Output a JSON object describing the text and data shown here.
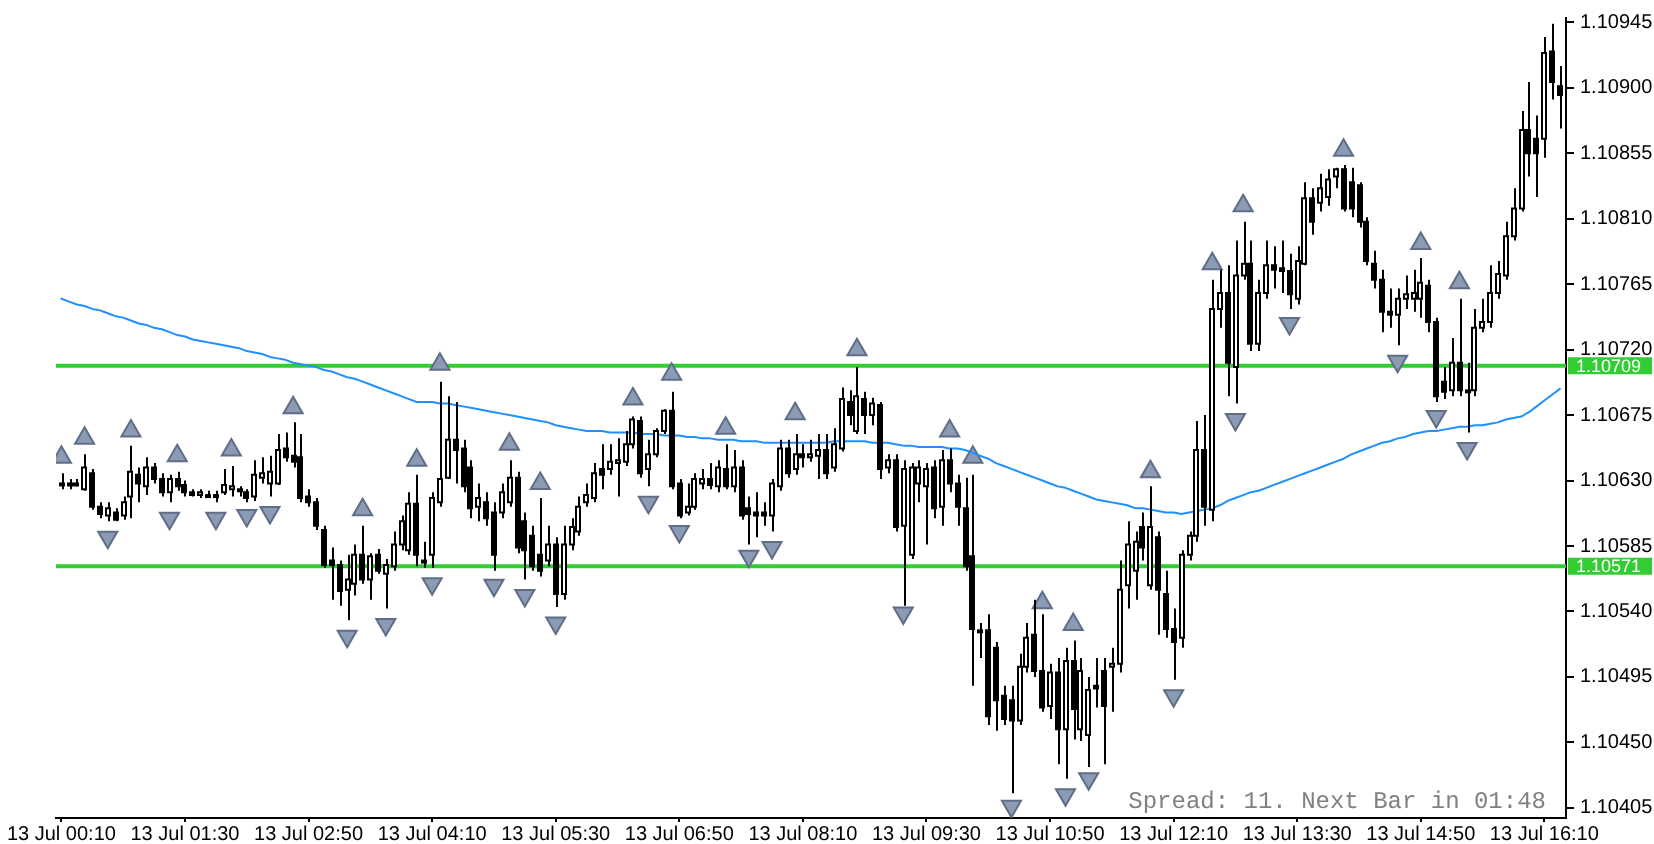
{
  "chart_data": {
    "type": "candlestick",
    "categories": [
      "13 Jul 00:10",
      null,
      null,
      null,
      null,
      null,
      null,
      null,
      null,
      null,
      null,
      null,
      null,
      null,
      null,
      null,
      "13 Jul 01:30",
      null,
      null,
      null,
      null,
      null,
      null,
      null,
      null,
      null,
      null,
      null,
      null,
      null,
      null,
      null,
      "13 Jul 02:50",
      null,
      null,
      null,
      null,
      null,
      null,
      null,
      null,
      null,
      null,
      null,
      null,
      null,
      null,
      null,
      "13 Jul 04:10",
      null,
      null,
      null,
      null,
      null,
      null,
      null,
      null,
      null,
      null,
      null,
      null,
      null,
      null,
      null,
      "13 Jul 05:30",
      null,
      null,
      null,
      null,
      null,
      null,
      null,
      null,
      null,
      null,
      null,
      null,
      null,
      null,
      null,
      "13 Jul 06:50",
      null,
      null,
      null,
      null,
      null,
      null,
      null,
      null,
      null,
      null,
      null,
      null,
      null,
      null,
      null,
      "13 Jul 08:10",
      null,
      null,
      null,
      null,
      null,
      null,
      null,
      null,
      null,
      null,
      null,
      null,
      null,
      null,
      null,
      "13 Jul 09:30",
      null,
      null,
      null,
      null,
      null,
      null,
      null,
      null,
      null,
      null,
      null,
      null,
      null,
      null,
      null,
      "13 Jul 10:50",
      null,
      null,
      null,
      null,
      null,
      null,
      null,
      null,
      null,
      null,
      null,
      null,
      null,
      null,
      null,
      "13 Jul 12:10",
      null,
      null,
      null,
      null,
      null,
      null,
      null,
      null,
      null,
      null,
      null,
      null,
      null,
      null,
      null,
      "13 Jul 13:30",
      null,
      null,
      null,
      null,
      null,
      null,
      null,
      null,
      null,
      null,
      null,
      null,
      null,
      null,
      null,
      "13 Jul 14:50",
      null,
      null,
      null,
      null,
      null,
      null,
      null,
      null,
      null,
      null,
      null,
      null,
      null,
      null,
      null,
      "13 Jul 16:10",
      null,
      null
    ],
    "ohlc": [
      [
        1.10628,
        1.10635,
        1.10624,
        1.10627
      ],
      [
        1.10627,
        1.10631,
        1.10624,
        1.10628
      ],
      [
        1.10628,
        1.10631,
        1.10626,
        1.10627
      ],
      [
        1.10624,
        1.10648,
        1.10623,
        1.10639
      ],
      [
        1.10635,
        1.10638,
        1.1061,
        1.10612
      ],
      [
        1.10612,
        1.10615,
        1.10604,
        1.10607
      ],
      [
        1.10606,
        1.10615,
        1.10602,
        1.10611
      ],
      [
        1.10608,
        1.10611,
        1.10602,
        1.10603
      ],
      [
        1.10606,
        1.10619,
        1.10603,
        1.10615
      ],
      [
        1.10619,
        1.10654,
        1.10604,
        1.10636
      ],
      [
        1.10634,
        1.10639,
        1.10615,
        1.10628
      ],
      [
        1.10626,
        1.10646,
        1.1062,
        1.10639
      ],
      [
        1.10639,
        1.10642,
        1.10628,
        1.10631
      ],
      [
        1.10631,
        1.10635,
        1.10619,
        1.10622
      ],
      [
        1.10622,
        1.10634,
        1.10615,
        1.10631
      ],
      [
        1.10631,
        1.10636,
        1.10623,
        1.10626
      ],
      [
        1.10627,
        1.1063,
        1.10619,
        1.10622
      ],
      [
        1.10622,
        1.10624,
        1.10619,
        1.1062
      ],
      [
        1.1062,
        1.10624,
        1.10618,
        1.10622
      ],
      [
        1.1062,
        1.10623,
        1.10618,
        1.10619
      ],
      [
        1.10619,
        1.10623,
        1.10615,
        1.1062
      ],
      [
        1.10622,
        1.10638,
        1.1062,
        1.10627
      ],
      [
        1.10624,
        1.1064,
        1.10619,
        1.10626
      ],
      [
        1.10623,
        1.10626,
        1.10619,
        1.10624
      ],
      [
        1.10622,
        1.10624,
        1.10615,
        1.10618
      ],
      [
        1.10619,
        1.10644,
        1.10616,
        1.10634
      ],
      [
        1.10632,
        1.10646,
        1.10628,
        1.10635
      ],
      [
        1.10628,
        1.10647,
        1.10619,
        1.10636
      ],
      [
        1.10628,
        1.10662,
        1.10627,
        1.10651
      ],
      [
        1.10652,
        1.10663,
        1.10643,
        1.10646
      ],
      [
        1.10647,
        1.1067,
        1.10639,
        1.10643
      ],
      [
        1.10646,
        1.10662,
        1.10615,
        1.10618
      ],
      [
        1.10619,
        1.10624,
        1.10612,
        1.10615
      ],
      [
        1.10615,
        1.10618,
        1.10596,
        1.10599
      ],
      [
        1.10596,
        1.10599,
        1.1057,
        1.10572
      ],
      [
        1.10575,
        1.10584,
        1.10548,
        1.10572
      ],
      [
        1.10572,
        1.10575,
        1.10544,
        1.10554
      ],
      [
        1.10555,
        1.10579,
        1.10534,
        1.10562
      ],
      [
        1.10559,
        1.10586,
        1.10551,
        1.10579
      ],
      [
        1.10579,
        1.10599,
        1.10559,
        1.10562
      ],
      [
        1.10562,
        1.1058,
        1.10548,
        1.10578
      ],
      [
        1.10579,
        1.10583,
        1.10566,
        1.10568
      ],
      [
        1.10566,
        1.10576,
        1.10542,
        1.10572
      ],
      [
        1.10571,
        1.10595,
        1.10568,
        1.10586
      ],
      [
        1.10586,
        1.10606,
        1.10582,
        1.10602
      ],
      [
        1.10582,
        1.10622,
        1.10579,
        1.10614
      ],
      [
        1.10614,
        1.10634,
        1.10571,
        1.10579
      ],
      [
        1.10575,
        1.10588,
        1.1057,
        1.10574
      ],
      [
        1.10579,
        1.10622,
        1.1057,
        1.10618
      ],
      [
        1.10615,
        1.10698,
        1.10612,
        1.10631
      ],
      [
        1.10632,
        1.10688,
        1.10631,
        1.10658
      ],
      [
        1.10658,
        1.10684,
        1.10628,
        1.10651
      ],
      [
        1.10652,
        1.10658,
        1.10622,
        1.10626
      ],
      [
        1.10639,
        1.10644,
        1.10604,
        1.10611
      ],
      [
        1.10612,
        1.10628,
        1.10602,
        1.10618
      ],
      [
        1.10615,
        1.10622,
        1.10599,
        1.10604
      ],
      [
        1.10608,
        1.10615,
        1.10568,
        1.10579
      ],
      [
        1.10608,
        1.10628,
        1.10604,
        1.10622
      ],
      [
        1.10615,
        1.10644,
        1.10612,
        1.10632
      ],
      [
        1.10632,
        1.10636,
        1.1058,
        1.10584
      ],
      [
        1.10602,
        1.10608,
        1.10562,
        1.10582
      ],
      [
        1.10592,
        1.10599,
        1.10568,
        1.10571
      ],
      [
        1.10579,
        1.10618,
        1.10564,
        1.10568
      ],
      [
        1.10575,
        1.10599,
        1.10571,
        1.10586
      ],
      [
        1.10586,
        1.10591,
        1.10543,
        1.10552
      ],
      [
        1.10552,
        1.10599,
        1.10548,
        1.10586
      ],
      [
        1.10586,
        1.10604,
        1.10582,
        1.10598
      ],
      [
        1.10595,
        1.10619,
        1.10592,
        1.10612
      ],
      [
        1.10615,
        1.10628,
        1.10612,
        1.1062
      ],
      [
        1.10618,
        1.10642,
        1.10615,
        1.10635
      ],
      [
        1.10638,
        1.10655,
        1.10624,
        1.10634
      ],
      [
        1.10638,
        1.10655,
        1.10634,
        1.10643
      ],
      [
        1.10642,
        1.10659,
        1.10619,
        1.10644
      ],
      [
        1.10643,
        1.10664,
        1.1064,
        1.10655
      ],
      [
        1.10655,
        1.10674,
        1.10652,
        1.10672
      ],
      [
        1.10671,
        1.10674,
        1.10632,
        1.10635
      ],
      [
        1.10638,
        1.10658,
        1.10626,
        1.10648
      ],
      [
        1.10648,
        1.10666,
        1.10646,
        1.10664
      ],
      [
        1.10664,
        1.10679,
        1.10662,
        1.10678
      ],
      [
        1.10678,
        1.10691,
        1.10624,
        1.10626
      ],
      [
        1.10628,
        1.10631,
        1.10604,
        1.10606
      ],
      [
        1.10608,
        1.10628,
        1.10606,
        1.10612
      ],
      [
        1.10612,
        1.10635,
        1.1061,
        1.10631
      ],
      [
        1.10628,
        1.10638,
        1.10624,
        1.10631
      ],
      [
        1.10631,
        1.10642,
        1.10624,
        1.10627
      ],
      [
        1.10626,
        1.10644,
        1.10622,
        1.10639
      ],
      [
        1.10638,
        1.10655,
        1.10624,
        1.10626
      ],
      [
        1.10626,
        1.10651,
        1.10622,
        1.10639
      ],
      [
        1.10639,
        1.10644,
        1.10603,
        1.10606
      ],
      [
        1.10611,
        1.10619,
        1.10586,
        1.10607
      ],
      [
        1.10608,
        1.10622,
        1.10591,
        1.10606
      ],
      [
        1.10608,
        1.10615,
        1.10599,
        1.10606
      ],
      [
        1.10606,
        1.10631,
        1.10595,
        1.10628
      ],
      [
        1.10626,
        1.10658,
        1.10623,
        1.10652
      ],
      [
        1.10652,
        1.10658,
        1.10632,
        1.10635
      ],
      [
        1.10638,
        1.10662,
        1.10634,
        1.10648
      ],
      [
        1.10648,
        1.10655,
        1.10639,
        1.10646
      ],
      [
        1.10646,
        1.10658,
        1.10643,
        1.10648
      ],
      [
        1.10647,
        1.10662,
        1.10631,
        1.10651
      ],
      [
        1.10651,
        1.10662,
        1.10631,
        1.10635
      ],
      [
        1.10639,
        1.10666,
        1.10636,
        1.10655
      ],
      [
        1.10652,
        1.10694,
        1.1065,
        1.10686
      ],
      [
        1.10684,
        1.10692,
        1.10668,
        1.10675
      ],
      [
        1.10664,
        1.10708,
        1.10662,
        1.10688
      ],
      [
        1.10686,
        1.10691,
        1.10662,
        1.10675
      ],
      [
        1.10675,
        1.10687,
        1.10668,
        1.10683
      ],
      [
        1.10682,
        1.10684,
        1.10631,
        1.10638
      ],
      [
        1.10639,
        1.10648,
        1.10635,
        1.10644
      ],
      [
        1.10644,
        1.10648,
        1.10595,
        1.10598
      ],
      [
        1.10599,
        1.10644,
        1.10544,
        1.10638
      ],
      [
        1.10579,
        1.10642,
        1.10576,
        1.10639
      ],
      [
        1.10628,
        1.10644,
        1.10615,
        1.10639
      ],
      [
        1.10626,
        1.10642,
        1.10586,
        1.10638
      ],
      [
        1.10639,
        1.10644,
        1.10604,
        1.10611
      ],
      [
        1.10612,
        1.10651,
        1.10599,
        1.10644
      ],
      [
        1.10644,
        1.10652,
        1.10622,
        1.10628
      ],
      [
        1.10628,
        1.10634,
        1.10599,
        1.10612
      ],
      [
        1.10611,
        1.10632,
        1.10568,
        1.10571
      ],
      [
        1.10578,
        1.10634,
        1.10489,
        1.10528
      ],
      [
        1.10527,
        1.10532,
        1.10508,
        1.10526
      ],
      [
        1.10527,
        1.10538,
        1.10462,
        1.10468
      ],
      [
        1.10515,
        1.10519,
        1.10458,
        1.10479
      ],
      [
        1.10482,
        1.10489,
        1.10462,
        1.10466
      ],
      [
        1.10479,
        1.10489,
        1.10415,
        1.10465
      ],
      [
        1.10465,
        1.10511,
        1.10462,
        1.10502
      ],
      [
        1.10502,
        1.10532,
        1.10498,
        1.10522
      ],
      [
        1.10524,
        1.10548,
        1.10495,
        1.10499
      ],
      [
        1.10499,
        1.10538,
        1.10471,
        1.10474
      ],
      [
        1.10475,
        1.10504,
        1.10466,
        1.10498
      ],
      [
        1.10498,
        1.10508,
        1.10435,
        1.10459
      ],
      [
        1.10459,
        1.10515,
        1.10425,
        1.10506
      ],
      [
        1.10506,
        1.1052,
        1.10452,
        1.10473
      ],
      [
        1.10459,
        1.10508,
        1.10451,
        1.10499
      ],
      [
        1.10455,
        1.10495,
        1.10433,
        1.10486
      ],
      [
        1.10489,
        1.10508,
        1.10474,
        1.10487
      ],
      [
        1.10499,
        1.10508,
        1.10435,
        1.10475
      ],
      [
        1.10502,
        1.10515,
        1.10471,
        1.10504
      ],
      [
        1.10504,
        1.10575,
        1.10498,
        1.10555
      ],
      [
        1.10558,
        1.10602,
        1.10542,
        1.10586
      ],
      [
        1.10568,
        1.10595,
        1.10548,
        1.10588
      ],
      [
        1.10598,
        1.10608,
        1.10575,
        1.10584
      ],
      [
        1.10558,
        1.10626,
        1.10555,
        1.10598
      ],
      [
        1.10591,
        1.10595,
        1.10524,
        1.10555
      ],
      [
        1.10552,
        1.10568,
        1.10522,
        1.10528
      ],
      [
        1.10528,
        1.10542,
        1.10493,
        1.10519
      ],
      [
        1.10522,
        1.10582,
        1.10515,
        1.10579
      ],
      [
        1.10579,
        1.10595,
        1.10575,
        1.10592
      ],
      [
        1.10592,
        1.10671,
        1.10588,
        1.10651
      ],
      [
        1.10651,
        1.10675,
        1.10599,
        1.10612
      ],
      [
        1.1061,
        1.10768,
        1.10602,
        1.10748
      ],
      [
        1.10748,
        1.10775,
        1.10735,
        1.10759
      ],
      [
        1.10759,
        1.10778,
        1.10688,
        1.10711
      ],
      [
        1.10708,
        1.10795,
        1.10683,
        1.10771
      ],
      [
        1.10771,
        1.10808,
        1.10768,
        1.10779
      ],
      [
        1.10779,
        1.10795,
        1.10719,
        1.10724
      ],
      [
        1.10724,
        1.10768,
        1.10719,
        1.10759
      ],
      [
        1.10759,
        1.10795,
        1.10755,
        1.10778
      ],
      [
        1.10778,
        1.10791,
        1.10762,
        1.10775
      ],
      [
        1.10776,
        1.10795,
        1.10759,
        1.10774
      ],
      [
        1.10774,
        1.10786,
        1.10748,
        1.10758
      ],
      [
        1.10755,
        1.10791,
        1.10751,
        1.10781
      ],
      [
        1.10779,
        1.10835,
        1.10778,
        1.10824
      ],
      [
        1.10824,
        1.10831,
        1.10799,
        1.10808
      ],
      [
        1.10821,
        1.10841,
        1.10815,
        1.10831
      ],
      [
        1.10825,
        1.10844,
        1.10819,
        1.10837
      ],
      [
        1.10839,
        1.10845,
        1.10831,
        1.10844
      ],
      [
        1.10844,
        1.10847,
        1.10815,
        1.10817
      ],
      [
        1.10835,
        1.10845,
        1.10811,
        1.10817
      ],
      [
        1.10833,
        1.10835,
        1.10804,
        1.10808
      ],
      [
        1.10808,
        1.10811,
        1.10778,
        1.10781
      ],
      [
        1.10779,
        1.10788,
        1.10762,
        1.10768
      ],
      [
        1.10768,
        1.10775,
        1.10732,
        1.10746
      ],
      [
        1.10746,
        1.10762,
        1.10735,
        1.10744
      ],
      [
        1.10744,
        1.10762,
        1.10723,
        1.10755
      ],
      [
        1.10755,
        1.10771,
        1.10748,
        1.10758
      ],
      [
        1.10755,
        1.10775,
        1.10746,
        1.10759
      ],
      [
        1.10755,
        1.10783,
        1.10742,
        1.10766
      ],
      [
        1.10764,
        1.10768,
        1.10732,
        1.10739
      ],
      [
        1.10739,
        1.10742,
        1.10684,
        1.10688
      ],
      [
        1.10698,
        1.10708,
        1.10686,
        1.10691
      ],
      [
        1.10692,
        1.10728,
        1.10688,
        1.10711
      ],
      [
        1.10711,
        1.10755,
        1.10688,
        1.10692
      ],
      [
        1.10692,
        1.10711,
        1.10663,
        1.10691
      ],
      [
        1.10692,
        1.10748,
        1.10688,
        1.10735
      ],
      [
        1.10735,
        1.10755,
        1.10732,
        1.10739
      ],
      [
        1.10739,
        1.10778,
        1.10735,
        1.10759
      ],
      [
        1.10759,
        1.10781,
        1.10755,
        1.10772
      ],
      [
        1.10771,
        1.10808,
        1.10768,
        1.10798
      ],
      [
        1.10798,
        1.10831,
        1.10795,
        1.10817
      ],
      [
        1.10817,
        1.10884,
        1.10815,
        1.10871
      ],
      [
        1.10871,
        1.10904,
        1.10839,
        1.10855
      ],
      [
        1.10865,
        1.10881,
        1.10825,
        1.10855
      ],
      [
        1.10865,
        1.10935,
        1.10852,
        1.10924
      ],
      [
        1.10925,
        1.10944,
        1.10892,
        1.10904
      ],
      [
        1.10901,
        1.10915,
        1.10872,
        1.10895
      ]
    ],
    "series": [
      {
        "type": "line",
        "color": "#1e90ff",
        "values": [
          1.10755,
          1.10753,
          1.10751,
          1.1075,
          1.10748,
          1.10747,
          1.10745,
          1.10743,
          1.10742,
          1.1074,
          1.10738,
          1.10737,
          1.10735,
          1.10734,
          1.10732,
          1.1073,
          1.10729,
          1.10727,
          1.10726,
          1.10725,
          1.10724,
          1.10723,
          1.10722,
          1.10721,
          1.10719,
          1.10718,
          1.10717,
          1.10715,
          1.10714,
          1.10713,
          1.10711,
          1.1071,
          1.10709,
          1.10708,
          1.10706,
          1.10705,
          1.10703,
          1.10701,
          1.107,
          1.10698,
          1.10696,
          1.10694,
          1.10692,
          1.1069,
          1.10688,
          1.10686,
          1.10684,
          1.10684,
          1.10684,
          1.10683,
          1.10683,
          1.10682,
          1.10681,
          1.1068,
          1.10679,
          1.10678,
          1.10677,
          1.10676,
          1.10675,
          1.10674,
          1.10673,
          1.10672,
          1.10671,
          1.1067,
          1.10668,
          1.10667,
          1.10666,
          1.10665,
          1.10664,
          1.10664,
          1.10664,
          1.10663,
          1.10663,
          1.10663,
          1.10663,
          1.10662,
          1.10662,
          1.10662,
          1.10661,
          1.10661,
          1.10661,
          1.1066,
          1.1066,
          1.10659,
          1.10659,
          1.10658,
          1.10658,
          1.10658,
          1.10657,
          1.10657,
          1.10657,
          1.10656,
          1.10656,
          1.10656,
          1.10656,
          1.10656,
          1.10656,
          1.10656,
          1.10656,
          1.10656,
          1.10657,
          1.10657,
          1.10657,
          1.10657,
          1.10657,
          1.10656,
          1.10656,
          1.10656,
          1.10655,
          1.10654,
          1.10654,
          1.10653,
          1.10653,
          1.10653,
          1.10653,
          1.10652,
          1.10652,
          1.10651,
          1.10649,
          1.10647,
          1.10645,
          1.10642,
          1.1064,
          1.10638,
          1.10636,
          1.10634,
          1.10632,
          1.1063,
          1.10628,
          1.10626,
          1.10625,
          1.10623,
          1.10621,
          1.10619,
          1.10617,
          1.10616,
          1.10615,
          1.10614,
          1.10613,
          1.10611,
          1.10611,
          1.1061,
          1.10609,
          1.10608,
          1.10608,
          1.10607,
          1.10608,
          1.10609,
          1.1061,
          1.10611,
          1.10613,
          1.10616,
          1.10618,
          1.1062,
          1.10622,
          1.10623,
          1.10625,
          1.10627,
          1.10629,
          1.10631,
          1.10633,
          1.10635,
          1.10637,
          1.10639,
          1.10641,
          1.10643,
          1.10645,
          1.10648,
          1.1065,
          1.10652,
          1.10654,
          1.10656,
          1.10657,
          1.10659,
          1.1066,
          1.10662,
          1.10663,
          1.10664,
          1.10664,
          1.10665,
          1.10666,
          1.10667,
          1.10667,
          1.10668,
          1.10668,
          1.10669,
          1.1067,
          1.10672,
          1.10673,
          1.10674,
          1.10677,
          1.10681,
          1.10685,
          1.10689,
          1.10693
        ]
      },
      {
        "type": "scatter",
        "color": "#8c9bb4",
        "marker": "triangle",
        "values": [
          1.10646,
          null,
          null,
          1.10659,
          null,
          null,
          null,
          null,
          null,
          1.10664,
          null,
          null,
          null,
          null,
          null,
          1.10647,
          null,
          null,
          null,
          null,
          null,
          null,
          1.10651,
          null,
          null,
          null,
          null,
          null,
          null,
          null,
          1.1068,
          null,
          null,
          null,
          null,
          null,
          null,
          null,
          null,
          1.1061,
          null,
          null,
          null,
          null,
          null,
          null,
          1.10644,
          null,
          null,
          1.1071,
          null,
          null,
          null,
          null,
          null,
          null,
          null,
          null,
          1.10655,
          null,
          null,
          null,
          1.10628,
          null,
          null,
          null,
          null,
          null,
          null,
          null,
          null,
          null,
          null,
          null,
          1.10686,
          null,
          null,
          null,
          null,
          1.10703,
          null,
          null,
          null,
          null,
          null,
          null,
          1.10666,
          null,
          null,
          null,
          null,
          null,
          null,
          null,
          null,
          1.10676,
          null,
          null,
          null,
          null,
          null,
          null,
          null,
          1.1072,
          null,
          null,
          null,
          null,
          null,
          null,
          null,
          null,
          null,
          null,
          null,
          1.10664,
          null,
          null,
          1.10646,
          null,
          null,
          null,
          null,
          null,
          null,
          null,
          null,
          1.10546,
          null,
          null,
          null,
          1.10531,
          null,
          null,
          null,
          null,
          null,
          null,
          null,
          null,
          null,
          1.10636,
          null,
          null,
          null,
          null,
          null,
          null,
          null,
          1.10779,
          null,
          null,
          null,
          1.10819,
          null,
          null,
          null,
          null,
          null,
          null,
          null,
          null,
          null,
          null,
          null,
          null,
          1.10857,
          null,
          null,
          null,
          null,
          null,
          null,
          null,
          null,
          null,
          1.10793,
          null,
          null,
          null,
          null,
          1.10766,
          null,
          null,
          null,
          null,
          null,
          null,
          null,
          null,
          null,
          null,
          null,
          null,
          null
        ]
      },
      {
        "type": "scatter",
        "color": "#8c9bb4",
        "marker": "triangle",
        "values": [
          null,
          null,
          null,
          null,
          null,
          null,
          1.10591,
          null,
          null,
          null,
          null,
          null,
          null,
          null,
          1.10604,
          null,
          null,
          null,
          null,
          null,
          1.10604,
          null,
          null,
          null,
          1.10606,
          null,
          null,
          1.10608,
          null,
          null,
          null,
          null,
          null,
          null,
          null,
          null,
          null,
          1.10523,
          null,
          null,
          null,
          null,
          1.10531,
          null,
          null,
          null,
          null,
          null,
          1.10559,
          null,
          null,
          null,
          null,
          null,
          null,
          null,
          1.10558,
          null,
          null,
          null,
          1.10551,
          null,
          null,
          null,
          1.10532,
          null,
          null,
          null,
          null,
          null,
          null,
          null,
          null,
          null,
          null,
          null,
          1.10615,
          null,
          null,
          null,
          1.10595,
          null,
          null,
          null,
          null,
          null,
          null,
          null,
          null,
          1.10578,
          null,
          null,
          1.10584,
          null,
          null,
          null,
          null,
          null,
          null,
          null,
          null,
          null,
          null,
          null,
          null,
          null,
          null,
          null,
          null,
          1.10539,
          null,
          null,
          null,
          null,
          null,
          null,
          null,
          null,
          null,
          null,
          null,
          null,
          null,
          1.10406,
          null,
          null,
          null,
          null,
          null,
          null,
          1.10414,
          null,
          null,
          1.10425,
          null,
          null,
          null,
          null,
          null,
          null,
          null,
          null,
          null,
          null,
          1.10482,
          null,
          null,
          null,
          null,
          null,
          null,
          null,
          1.10672,
          null,
          null,
          null,
          null,
          null,
          null,
          1.10738,
          null,
          null,
          null,
          null,
          null,
          null,
          null,
          null,
          null,
          null,
          null,
          null,
          null,
          1.10712,
          null,
          null,
          null,
          null,
          1.10674,
          null,
          null,
          null,
          1.10652,
          null,
          null,
          null,
          null,
          null,
          null,
          null,
          null,
          null,
          null,
          null,
          null
        ]
      }
    ],
    "ylim": [
      1.10398,
      1.10948
    ],
    "yticks": [
      1.10405,
      {
        "value": 1.1045,
        "label": "1.10450"
      },
      1.10495,
      {
        "value": 1.1054,
        "label": "1.10540"
      },
      1.10585,
      {
        "value": 1.1063,
        "label": "1.10630"
      },
      1.10675,
      {
        "value": 1.1072,
        "label": "1.10720"
      },
      1.10765,
      {
        "value": 1.1081,
        "label": "1.10810"
      },
      1.10855,
      {
        "value": 1.109,
        "label": "1.10900"
      },
      1.10945
    ],
    "ref_lines": [
      {
        "axis": "y",
        "value": 1.10709,
        "label": "1.10709",
        "color": "#32cd32"
      },
      {
        "axis": "y",
        "value": 1.10571,
        "label": "1.10571",
        "color": "#32cd32"
      }
    ],
    "annotations": [
      "Spread: 11. Next Bar in 01:48"
    ]
  }
}
